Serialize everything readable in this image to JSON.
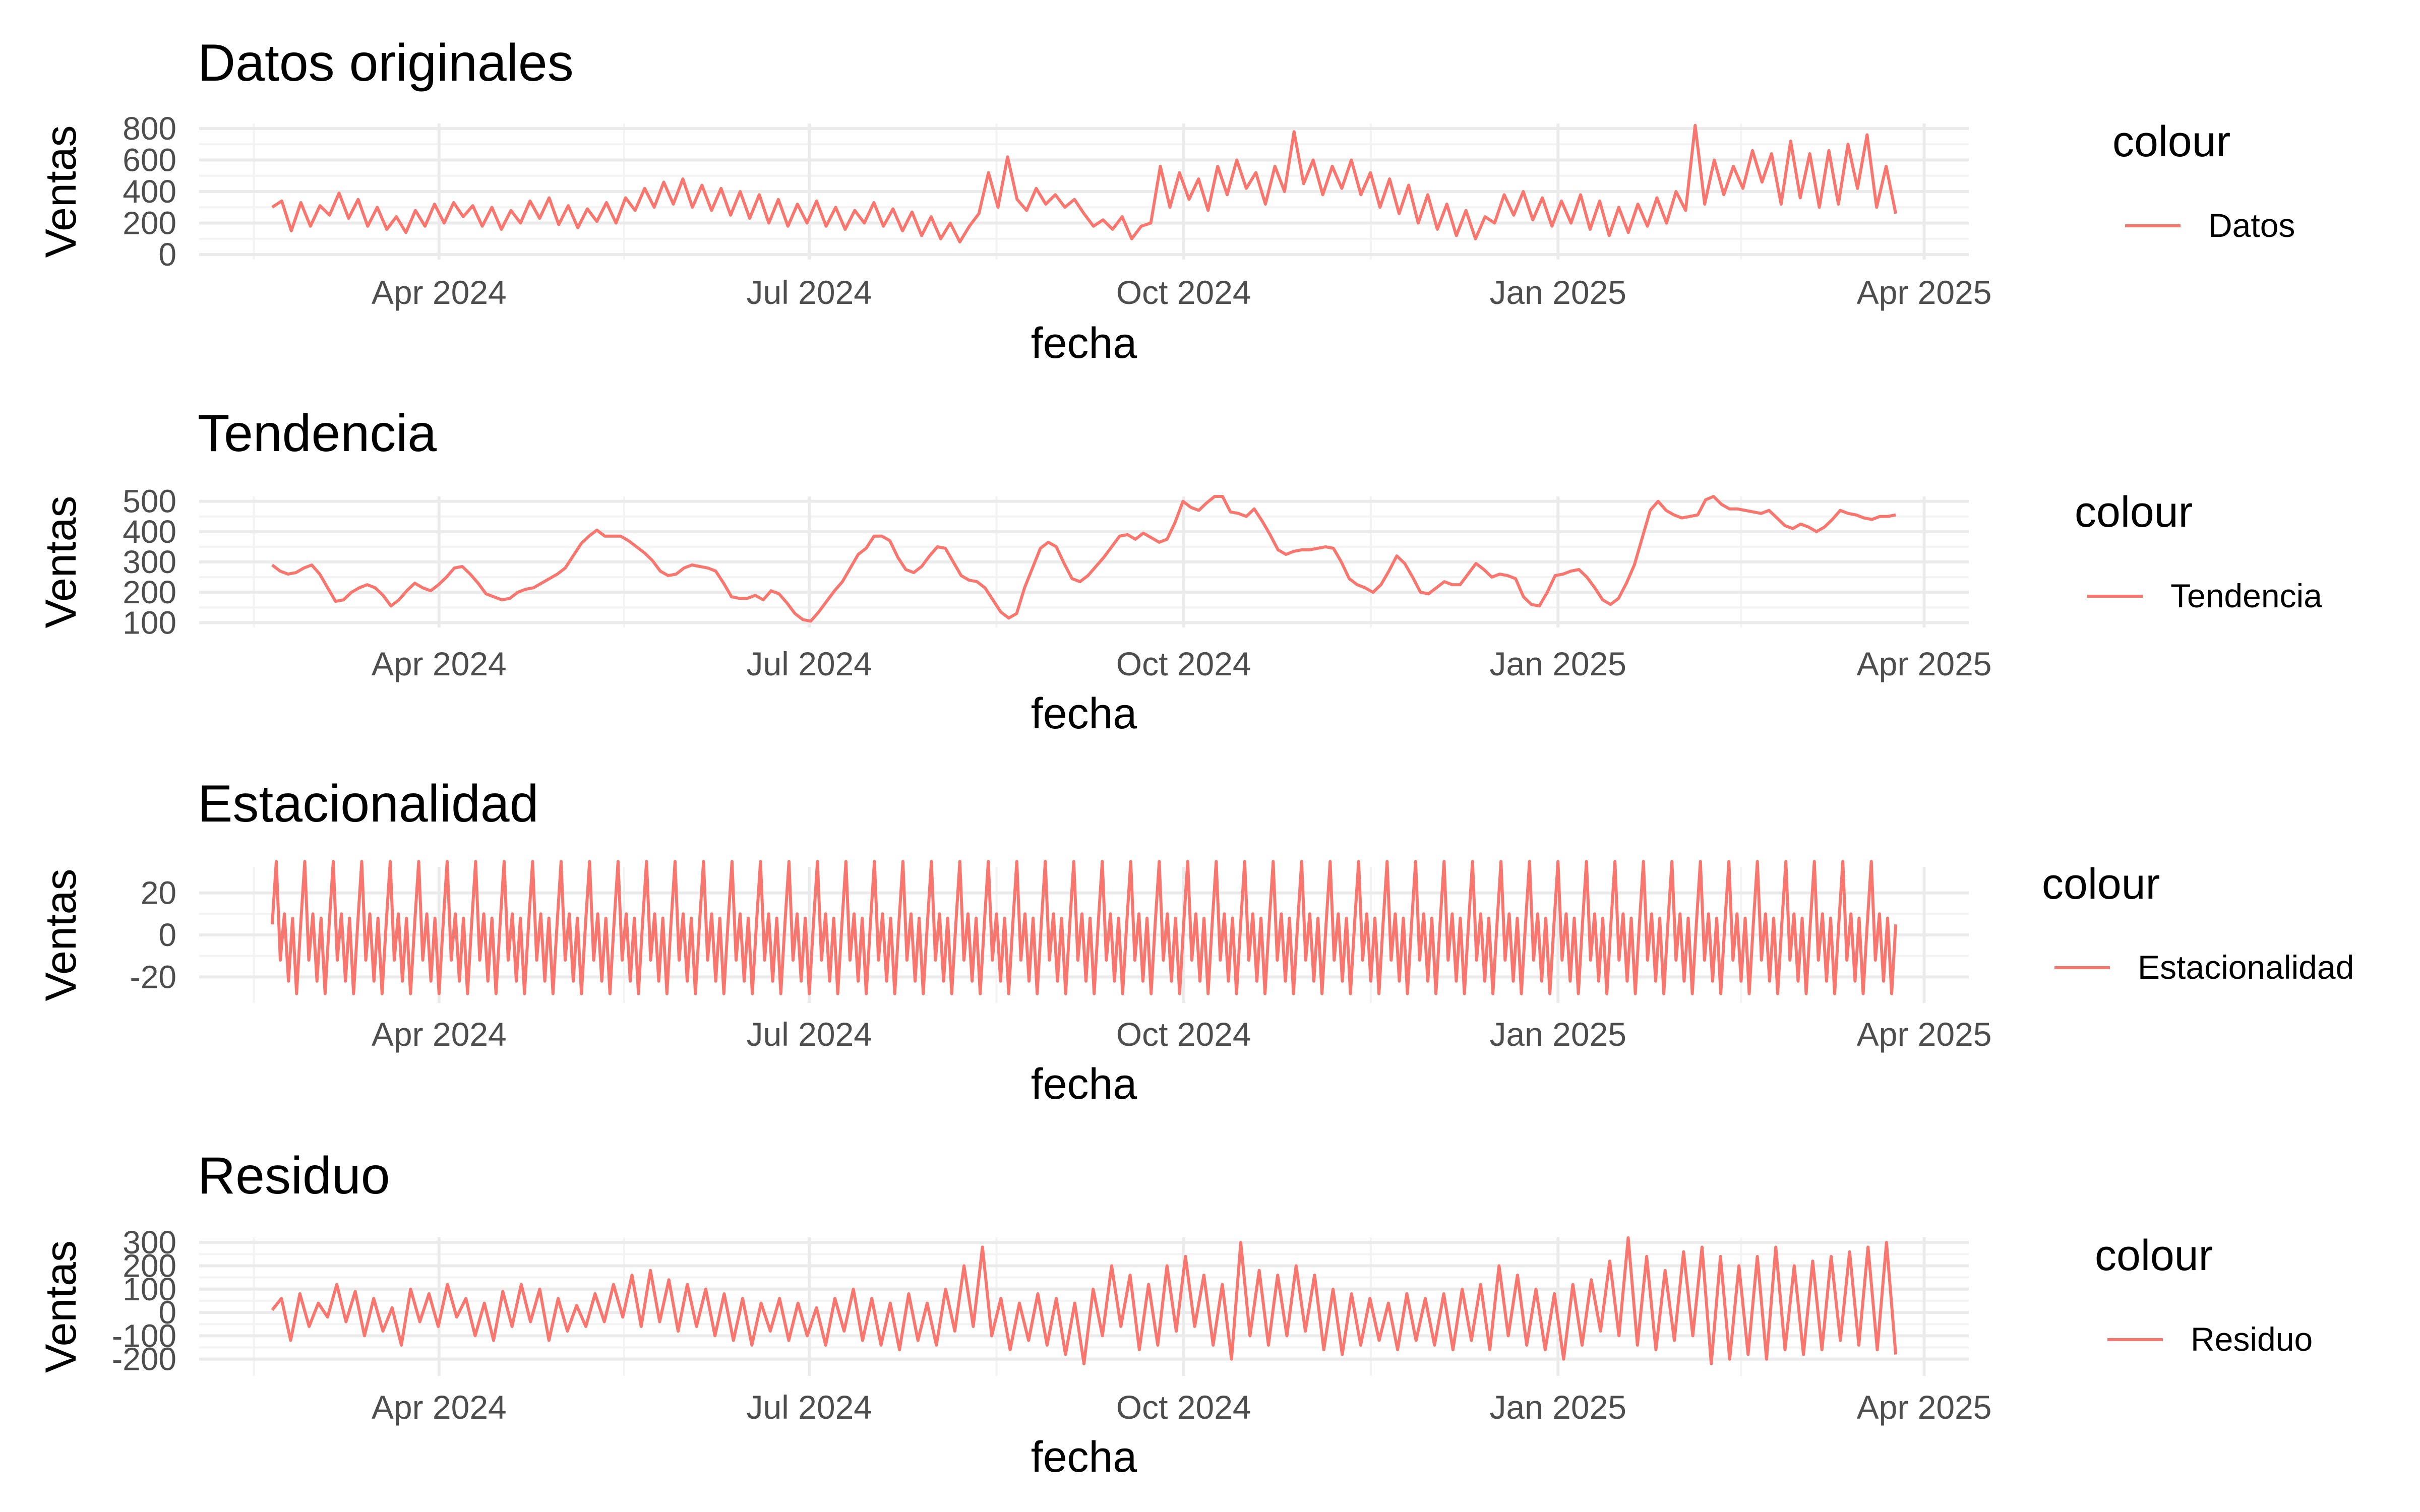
{
  "colors": {
    "series": "#F8766D",
    "grid_major": "#EBEBEB",
    "grid_minor": "#F3F3F3",
    "tick_text": "#4D4D4D",
    "text": "#000000"
  },
  "x_ticks": [
    {
      "date": "2024-04-01",
      "label": "Apr 2024"
    },
    {
      "date": "2024-07-01",
      "label": "Jul 2024"
    },
    {
      "date": "2024-10-01",
      "label": "Oct 2024"
    },
    {
      "date": "2025-01-01",
      "label": "Jan 2025"
    },
    {
      "date": "2025-04-01",
      "label": "Apr 2025"
    }
  ],
  "chart_data": [
    {
      "type": "line",
      "title": "Datos originales",
      "xlabel": "fecha",
      "ylabel": "Ventas",
      "x_range": [
        "2024-02-20",
        "2025-03-25"
      ],
      "ylim": [
        0,
        800
      ],
      "yticks": [
        0,
        200,
        400,
        600,
        800
      ],
      "ytick_labels": [
        "0",
        "200",
        "400",
        "600",
        "800"
      ],
      "grid": true,
      "legend": {
        "title": "colour",
        "position": "right"
      },
      "series": [
        {
          "name": "Datos",
          "x_start": "2024-02-20",
          "step_days": 3,
          "values": [
            300,
            340,
            150,
            330,
            180,
            310,
            250,
            390,
            230,
            350,
            180,
            300,
            160,
            240,
            140,
            280,
            180,
            320,
            200,
            330,
            240,
            310,
            180,
            300,
            160,
            280,
            200,
            340,
            230,
            360,
            190,
            310,
            170,
            290,
            210,
            330,
            200,
            360,
            280,
            420,
            300,
            460,
            320,
            480,
            300,
            440,
            280,
            420,
            250,
            400,
            230,
            380,
            200,
            350,
            180,
            320,
            200,
            340,
            180,
            300,
            160,
            280,
            200,
            330,
            180,
            290,
            150,
            270,
            120,
            240,
            100,
            200,
            80,
            180,
            260,
            520,
            300,
            620,
            350,
            280,
            420,
            320,
            380,
            300,
            350,
            260,
            180,
            220,
            160,
            240,
            100,
            180,
            200,
            560,
            300,
            520,
            350,
            480,
            280,
            560,
            380,
            600,
            420,
            520,
            320,
            560,
            400,
            780,
            450,
            600,
            380,
            560,
            420,
            600,
            380,
            520,
            300,
            480,
            260,
            440,
            200,
            380,
            160,
            320,
            120,
            280,
            100,
            240,
            200,
            380,
            250,
            400,
            220,
            360,
            180,
            340,
            200,
            380,
            160,
            340,
            120,
            300,
            140,
            320,
            180,
            360,
            200,
            400,
            280,
            820,
            320,
            600,
            380,
            560,
            420,
            660,
            460,
            640,
            320,
            720,
            360,
            640,
            300,
            660,
            320,
            700,
            420,
            760,
            300,
            560,
            260
          ],
          "note": ""
        }
      ]
    },
    {
      "type": "line",
      "title": "Tendencia",
      "xlabel": "fecha",
      "ylabel": "Ventas",
      "x_range": [
        "2024-02-20",
        "2025-03-25"
      ],
      "ylim": [
        100,
        500
      ],
      "yticks": [
        100,
        200,
        300,
        400,
        500
      ],
      "ytick_labels": [
        "100",
        "200",
        "300",
        "400",
        "500"
      ],
      "grid": true,
      "legend": {
        "title": "colour",
        "position": "right"
      },
      "series": [
        {
          "name": "Tendencia",
          "x_start": "2024-02-20",
          "step_days": 3,
          "values": [
            290,
            270,
            260,
            265,
            280,
            290,
            260,
            215,
            170,
            175,
            200,
            215,
            225,
            215,
            190,
            155,
            175,
            205,
            230,
            215,
            205,
            225,
            250,
            280,
            285,
            260,
            230,
            195,
            185,
            175,
            180,
            200,
            210,
            215,
            230,
            245,
            260,
            280,
            320,
            360,
            385,
            405,
            385,
            385,
            385,
            370,
            350,
            330,
            305,
            270,
            255,
            260,
            280,
            290,
            285,
            280,
            270,
            230,
            185,
            180,
            180,
            190,
            175,
            205,
            195,
            165,
            130,
            110,
            105,
            135,
            170,
            205,
            235,
            280,
            325,
            345,
            385,
            385,
            370,
            315,
            275,
            265,
            285,
            320,
            350,
            345,
            300,
            255,
            240,
            235,
            215,
            175,
            135,
            115,
            130,
            215,
            280,
            345,
            365,
            350,
            295,
            245,
            235,
            255,
            285,
            315,
            350,
            385,
            390,
            375,
            395,
            380,
            365,
            375,
            430,
            500,
            480,
            470,
            495,
            525,
            520,
            465,
            460,
            450,
            475,
            435,
            390,
            340,
            325,
            335,
            340,
            340,
            345,
            350,
            345,
            300,
            245,
            225,
            215,
            200,
            225,
            270,
            320,
            295,
            250,
            200,
            195,
            215,
            235,
            225,
            225,
            260,
            295,
            275,
            250,
            260,
            255,
            245,
            185,
            160,
            155,
            200,
            255,
            260,
            270,
            275,
            250,
            215,
            175,
            160,
            180,
            230,
            290,
            380,
            470,
            500,
            470,
            455,
            445,
            450,
            455,
            505,
            525,
            490,
            475,
            475,
            470,
            465,
            460,
            470,
            445,
            420,
            410,
            425,
            415,
            400,
            415,
            440,
            470,
            460,
            455,
            445,
            440,
            450,
            450,
            455
          ]
        }
      ]
    },
    {
      "type": "line",
      "title": "Estacionalidad",
      "xlabel": "fecha",
      "ylabel": "Ventas",
      "x_range": [
        "2024-02-20",
        "2025-03-25"
      ],
      "ylim": [
        -30,
        30
      ],
      "yticks": [
        -20,
        0,
        20
      ],
      "ytick_labels": [
        "-20",
        "0",
        "20"
      ],
      "grid": true,
      "legend": {
        "title": "colour",
        "position": "right"
      },
      "series": [
        {
          "name": "Estacionalidad",
          "period_days": 7,
          "weekly_pattern": [
            5,
            35,
            -12,
            10,
            -22,
            8,
            -28
          ],
          "x_start": "2024-02-20",
          "x_end": "2025-03-25"
        }
      ]
    },
    {
      "type": "line",
      "title": "Residuo",
      "xlabel": "fecha",
      "ylabel": "Ventas",
      "x_range": [
        "2024-02-20",
        "2025-03-25"
      ],
      "ylim": [
        -250,
        300
      ],
      "yticks": [
        -200,
        -100,
        0,
        100,
        200,
        300
      ],
      "ytick_labels": [
        "-200",
        "-100",
        "0",
        "100",
        "200",
        "300"
      ],
      "grid": true,
      "legend": {
        "title": "colour",
        "position": "right"
      },
      "series": [
        {
          "name": "Residuo",
          "x_start": "2024-02-20",
          "step_days": 3,
          "values": [
            10,
            60,
            -120,
            80,
            -60,
            40,
            -20,
            120,
            -40,
            90,
            -100,
            60,
            -80,
            20,
            -140,
            100,
            -40,
            80,
            -60,
            120,
            -20,
            60,
            -100,
            40,
            -120,
            90,
            -60,
            120,
            -40,
            100,
            -120,
            60,
            -80,
            30,
            -60,
            80,
            -40,
            120,
            -20,
            160,
            -60,
            180,
            -40,
            140,
            -80,
            120,
            -60,
            100,
            -100,
            80,
            -120,
            60,
            -140,
            40,
            -80,
            60,
            -120,
            40,
            -100,
            20,
            -140,
            60,
            -80,
            100,
            -120,
            60,
            -140,
            40,
            -160,
            80,
            -120,
            40,
            -140,
            100,
            -80,
            200,
            -60,
            280,
            -100,
            60,
            -160,
            40,
            -120,
            80,
            -140,
            60,
            -180,
            40,
            -220,
            100,
            -100,
            200,
            -60,
            160,
            -160,
            120,
            -140,
            200,
            -80,
            240,
            -60,
            160,
            -140,
            120,
            -200,
            300,
            -100,
            180,
            -140,
            160,
            -100,
            200,
            -80,
            160,
            -160,
            100,
            -180,
            80,
            -140,
            60,
            -120,
            40,
            -160,
            80,
            -120,
            60,
            -140,
            80,
            -160,
            100,
            -120,
            120,
            -160,
            200,
            -100,
            160,
            -140,
            100,
            -160,
            80,
            -200,
            120,
            -140,
            140,
            -80,
            220,
            -100,
            320,
            -140,
            240,
            -160,
            180,
            -120,
            260,
            -100,
            280,
            -220,
            240,
            -200,
            200,
            -180,
            240,
            -200,
            280,
            -160,
            200,
            -180,
            220,
            -160,
            240,
            -120,
            260,
            -140,
            280,
            -160,
            300,
            -180
          ]
        }
      ]
    }
  ]
}
